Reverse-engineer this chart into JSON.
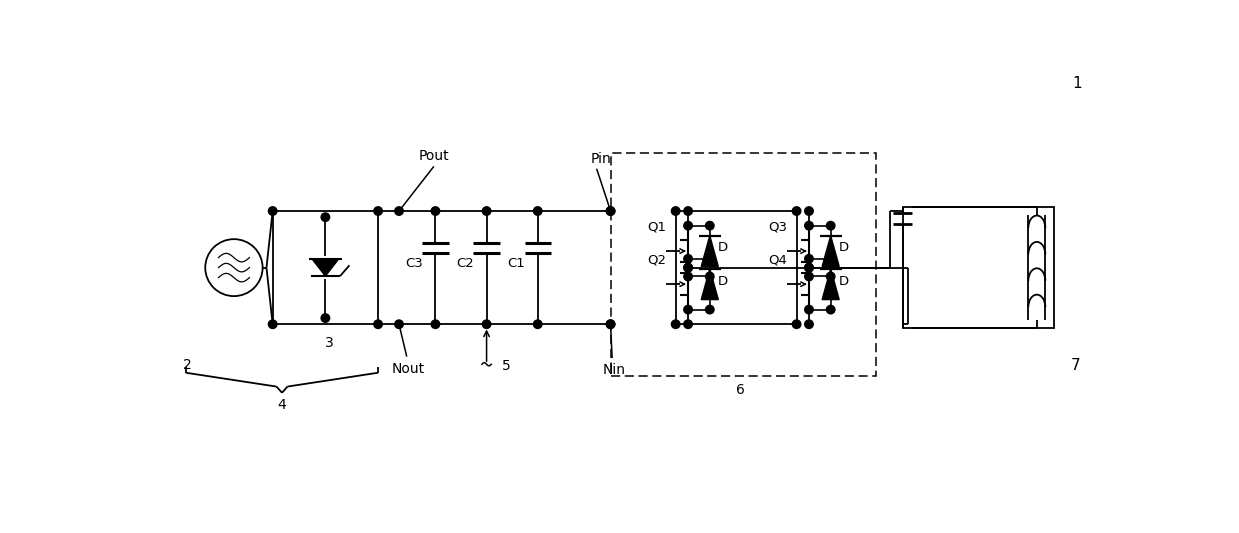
{
  "bg_color": "#ffffff",
  "line_color": "#000000",
  "dot_color": "#000000",
  "label_1": "1",
  "label_2": "2",
  "label_3": "3",
  "label_4": "4",
  "label_5": "5",
  "label_6": "6",
  "label_7": "7",
  "label_Pout": "Pout",
  "label_Pin": "Pin",
  "label_Nout": "Nout",
  "label_Nin": "Nin",
  "label_C1": "C1",
  "label_C2": "C2",
  "label_C3": "C3",
  "label_Q1": "Q1",
  "label_Q2": "Q2",
  "label_Q3": "Q3",
  "label_Q4": "Q4",
  "label_D": "D",
  "figw": 12.39,
  "figh": 5.33,
  "dpi": 100
}
